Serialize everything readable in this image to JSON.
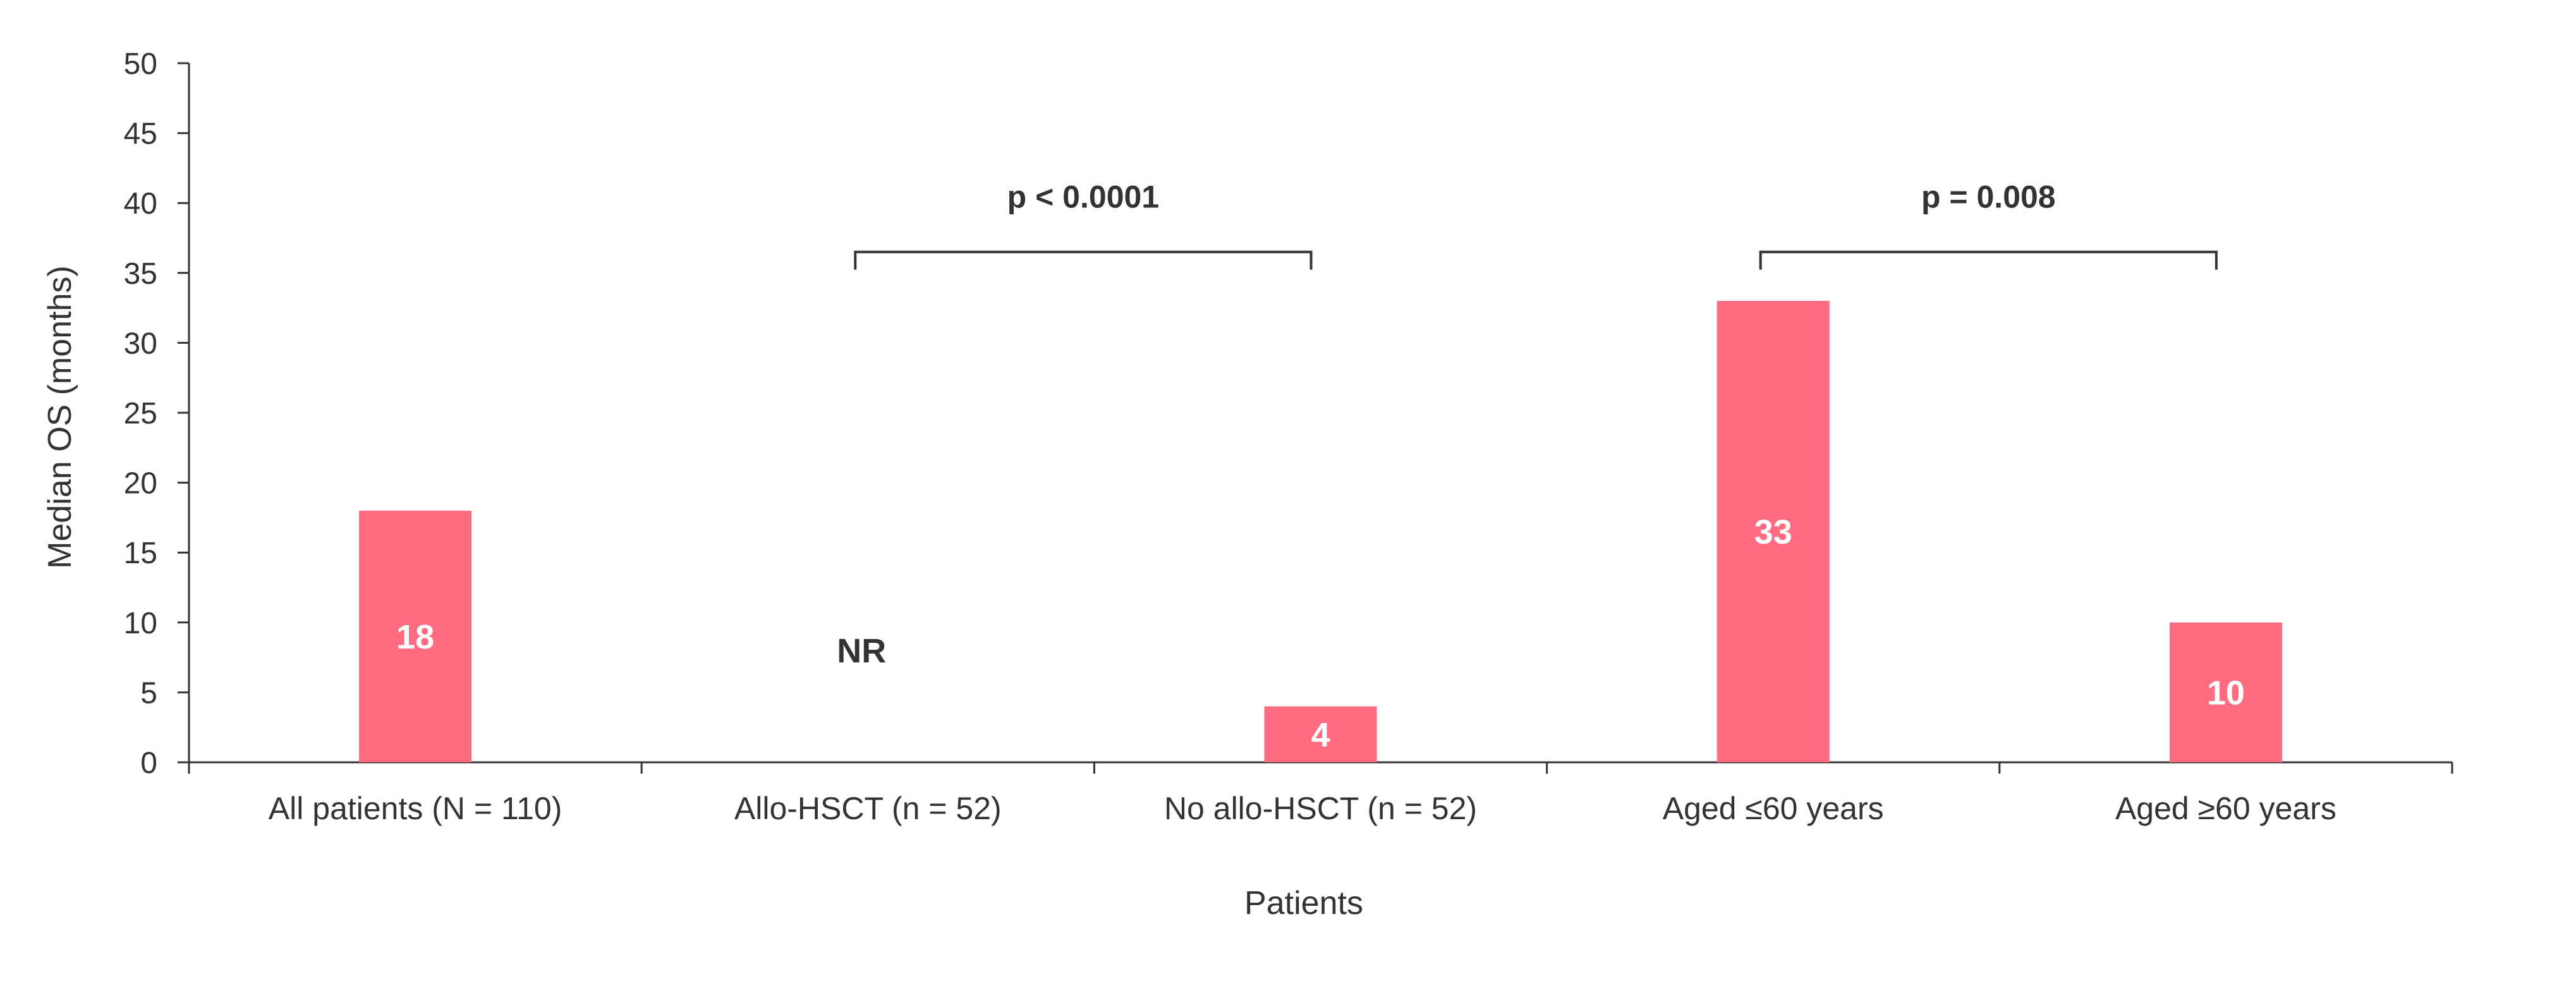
{
  "chart_data": {
    "type": "bar",
    "categories": [
      "All patients (N = 110)",
      "Allo-HSCT (n = 52)",
      "No allo-HSCT (n = 52)",
      "Aged ≤60  years",
      "Aged ≥60 years"
    ],
    "values": [
      18,
      null,
      4,
      33,
      10
    ],
    "data_labels": [
      "18",
      "NR",
      "4",
      "33",
      "10"
    ],
    "xlabel": "Patients",
    "ylabel": "Median OS (months)",
    "ylim": [
      0,
      50
    ],
    "yticks": [
      0,
      5,
      10,
      15,
      20,
      25,
      30,
      35,
      40,
      45,
      50
    ],
    "grid": false,
    "legend": "none",
    "bar_color": "#FF6B81",
    "axis_color": "#333333",
    "annotations": [
      {
        "label": "p < 0.0001",
        "from": 1,
        "to": 2,
        "level": 36.5
      },
      {
        "label": "p = 0.008",
        "from": 3,
        "to": 4,
        "level": 36.5
      }
    ]
  }
}
